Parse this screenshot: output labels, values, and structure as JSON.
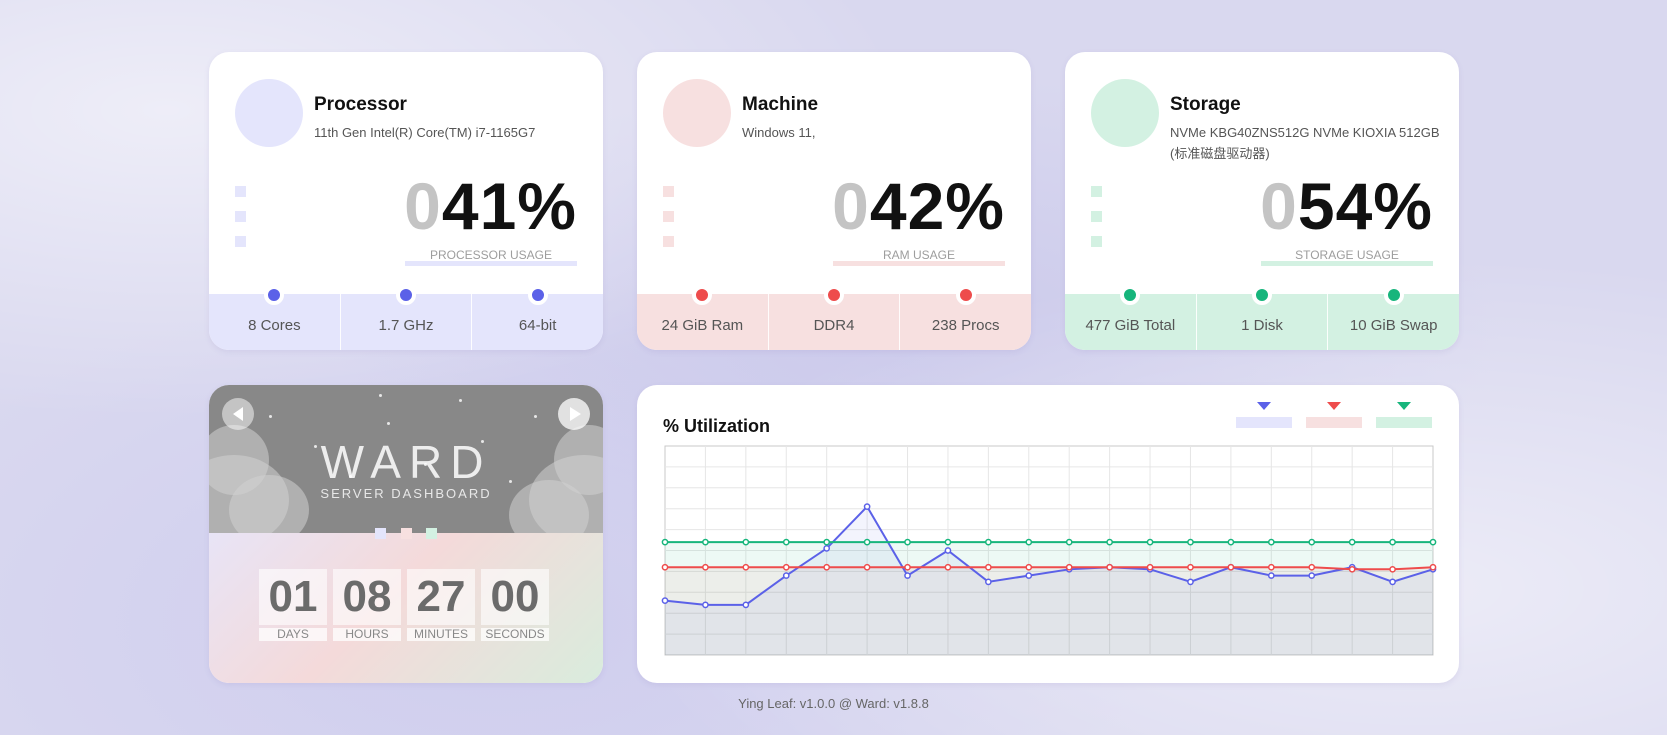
{
  "processor": {
    "title": "Processor",
    "subtitle": "11th Gen Intel(R) Core(TM) i7-1165G7",
    "lead_digit": "0",
    "value": "41%",
    "usage_label": "PROCESSOR USAGE",
    "stats": [
      "8 Cores",
      "1.7 GHz",
      "64-bit"
    ],
    "accent": "#5b61e8",
    "light": "#e4e5fc"
  },
  "machine": {
    "title": "Machine",
    "subtitle": "Windows 11,",
    "lead_digit": "0",
    "value": "42%",
    "usage_label": "RAM USAGE",
    "stats": [
      "24 GiB Ram",
      "DDR4",
      "238 Procs"
    ],
    "accent": "#ee4c4c",
    "light": "#f7e0e0"
  },
  "storage": {
    "title": "Storage",
    "subtitle": "NVMe KBG40ZNS512G NVMe KIOXIA 512GB (标准磁盘驱动器)",
    "lead_digit": "0",
    "value": "54%",
    "usage_label": "STORAGE USAGE",
    "stats": [
      "477 GiB Total",
      "1 Disk",
      "10 GiB Swap"
    ],
    "accent": "#17b57c",
    "light": "#d3f1e2"
  },
  "ward": {
    "title": "WARD",
    "subtitle": "SERVER DASHBOARD",
    "uptime": [
      {
        "value": "01",
        "label": "DAYS"
      },
      {
        "value": "08",
        "label": "HOURS"
      },
      {
        "value": "27",
        "label": "MINUTES"
      },
      {
        "value": "00",
        "label": "SECONDS"
      }
    ]
  },
  "chart_data": {
    "type": "line",
    "title": "% Utilization",
    "xlabel": "",
    "ylabel": "",
    "ylim": [
      0,
      100
    ],
    "grid": true,
    "legend_position": "top-right",
    "x": [
      1,
      2,
      3,
      4,
      5,
      6,
      7,
      8,
      9,
      10,
      11,
      12,
      13,
      14,
      15,
      16,
      17,
      18,
      19,
      20
    ],
    "series": [
      {
        "color": "#5b61e8",
        "values": [
          26,
          24,
          24,
          38,
          51,
          71,
          38,
          50,
          35,
          38,
          41,
          42,
          41,
          35,
          42,
          38,
          38,
          42,
          35,
          41
        ]
      },
      {
        "color": "#ee4c4c",
        "values": [
          42,
          42,
          42,
          42,
          42,
          42,
          42,
          42,
          42,
          42,
          42,
          42,
          42,
          42,
          42,
          42,
          42,
          41,
          41,
          42
        ]
      },
      {
        "color": "#17b57c",
        "values": [
          54,
          54,
          54,
          54,
          54,
          54,
          54,
          54,
          54,
          54,
          54,
          54,
          54,
          54,
          54,
          54,
          54,
          54,
          54,
          54
        ]
      }
    ]
  },
  "footer": "Ying Leaf: v1.0.0 @ Ward: v1.8.8"
}
